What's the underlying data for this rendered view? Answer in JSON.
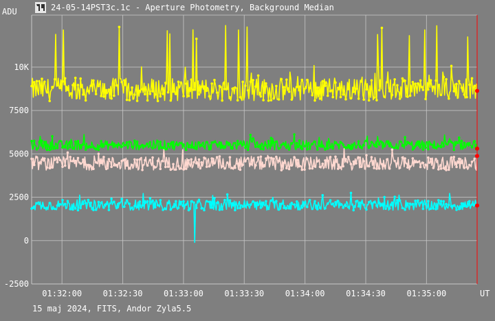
{
  "window": {
    "title": "24-05-14PST3c.1c - Aperture Photometry, Background Median",
    "icon": "app-logo-icon"
  },
  "footer": {
    "caption": "15 maj 2024, FITS, Andor Zyla5.5"
  },
  "chart_data": {
    "type": "line",
    "ylabel": "ADU",
    "xlabel": "UT",
    "ylim": [
      -2500,
      13000
    ],
    "xlim": [
      "01:31:45",
      "01:35:25"
    ],
    "y_ticks": [
      {
        "value": 10000,
        "label": "10K"
      },
      {
        "value": 7500,
        "label": "7500"
      },
      {
        "value": 5000,
        "label": "5000"
      },
      {
        "value": 2500,
        "label": "2500"
      },
      {
        "value": 0,
        "label": "0"
      },
      {
        "value": -2500,
        "label": "-2500"
      }
    ],
    "x_ticks": [
      {
        "value": "01:32:00",
        "label": "01:32:00"
      },
      {
        "value": "01:32:30",
        "label": "01:32:30"
      },
      {
        "value": "01:33:00",
        "label": "01:33:00"
      },
      {
        "value": "01:33:30",
        "label": "01:33:30"
      },
      {
        "value": "01:34:00",
        "label": "01:34:00"
      },
      {
        "value": "01:34:30",
        "label": "01:34:30"
      },
      {
        "value": "01:35:00",
        "label": "01:35:00"
      }
    ],
    "grid": true,
    "cursor_time": "01:35:25",
    "series": [
      {
        "color": "#ffff00",
        "mean": 8700,
        "spread": 1100,
        "min": 7300,
        "max": 12400
      },
      {
        "color": "#00ff00",
        "mean": 5500,
        "spread": 450,
        "min": 4500,
        "max": 6300
      },
      {
        "color": "#ffd8d0",
        "mean": 4450,
        "spread": 650,
        "min": 3300,
        "max": 5300
      },
      {
        "color": "#00ffff",
        "mean": 2050,
        "spread": 500,
        "min": -100,
        "max": 3100
      }
    ],
    "colors": {
      "background": "#7f7f7f",
      "grid": "#c8c8c8",
      "cursor": "#ff0000",
      "text": "#ffffff"
    }
  }
}
